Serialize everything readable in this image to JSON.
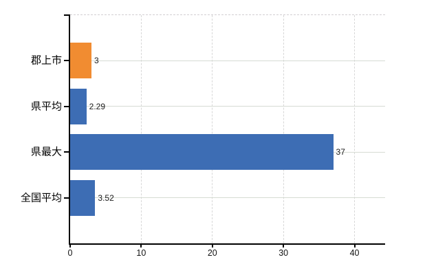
{
  "chart_data": {
    "type": "bar",
    "orientation": "horizontal",
    "title": "",
    "xlabel": "",
    "ylabel": "",
    "categories": [
      "郡上市",
      "県平均",
      "県最大",
      "全国平均"
    ],
    "values": [
      3,
      2.29,
      37,
      3.52
    ],
    "value_labels": [
      "3",
      "2.29",
      "37",
      "3.52"
    ],
    "bar_colors": [
      "#f18c31",
      "#3d6db4",
      "#3d6db4",
      "#3d6db4"
    ],
    "x_ticks": [
      0,
      10,
      20,
      30,
      40
    ],
    "x_tick_labels": [
      "0",
      "10",
      "20",
      "30",
      "40"
    ],
    "xlim": [
      0,
      44.3
    ],
    "grid": true,
    "legend": false,
    "colors": {
      "axis": "#000000",
      "gridline_horizontal": "#d6dbd3",
      "gridline_vertical": "#d7d7d7",
      "top_border_dashed": "#d2ced2",
      "text": "#000000",
      "background": "#ffffff"
    }
  }
}
